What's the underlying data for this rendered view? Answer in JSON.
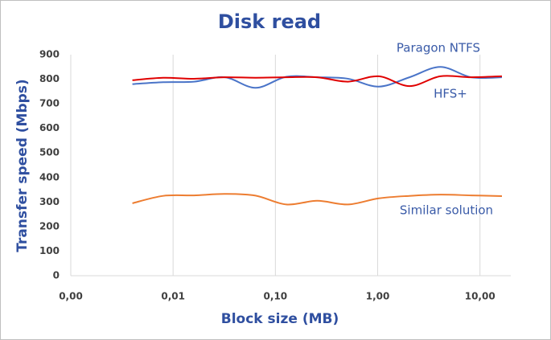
{
  "chart_data": {
    "type": "line",
    "title": "Disk read",
    "x_label": "Block size (MB)",
    "y_label": "Transfer speed (Mbps)",
    "x": [
      0.004,
      0.008,
      0.016,
      0.032,
      0.064,
      0.128,
      0.256,
      0.512,
      1.024,
      2.048,
      4.096,
      8.192,
      16.384
    ],
    "x_scale": "log",
    "xlim": [
      0.001,
      20
    ],
    "xticks": [
      {
        "value": 0.001,
        "label": "0,00"
      },
      {
        "value": 0.01,
        "label": "0,01"
      },
      {
        "value": 0.1,
        "label": "0,10"
      },
      {
        "value": 1,
        "label": "1,00"
      },
      {
        "value": 10,
        "label": "10,00"
      }
    ],
    "ylim": [
      0,
      900
    ],
    "yticks": [
      0,
      100,
      200,
      300,
      400,
      500,
      600,
      700,
      800,
      900
    ],
    "grid": "x",
    "series": [
      {
        "name": "Paragon NTFS",
        "color": "#4a74c8",
        "values": [
          780,
          788,
          790,
          808,
          765,
          810,
          808,
          802,
          770,
          808,
          850,
          808,
          808
        ]
      },
      {
        "name": "HFS+",
        "color": "#e00000",
        "values": [
          796,
          806,
          802,
          808,
          806,
          808,
          808,
          790,
          812,
          772,
          812,
          808,
          812
        ]
      },
      {
        "name": "Similar solution",
        "color": "#ed7d31",
        "values": [
          295,
          325,
          327,
          333,
          326,
          290,
          305,
          290,
          315,
          325,
          330,
          327,
          324
        ]
      }
    ]
  }
}
